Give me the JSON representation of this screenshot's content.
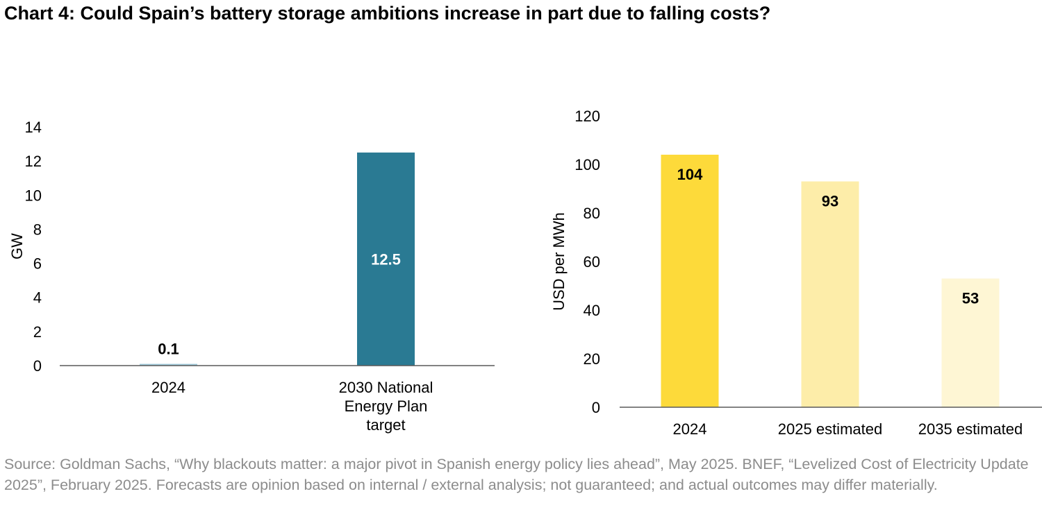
{
  "title": "Chart 4: Could Spain’s battery storage ambitions increase in part due to falling costs?",
  "source": "Source: Goldman Sachs, “Why blackouts matter: a major pivot in Spanish energy policy lies ahead”, May 2025. BNEF, “Levelized Cost of Electricity Update 2025”, February 2025. Forecasts are opinion based on internal / external analysis; not guaranteed; and actual outcomes may differ materially.",
  "chart_data": [
    {
      "type": "bar",
      "categories": [
        [
          "2024"
        ],
        [
          "2030 National",
          "Energy Plan",
          "target"
        ]
      ],
      "values": [
        0.1,
        12.5
      ],
      "data_labels": [
        "0.1",
        "12.5"
      ],
      "ylabel": "GW",
      "ylim": [
        0,
        14
      ],
      "yticks": [
        0,
        2,
        4,
        6,
        8,
        10,
        12,
        14
      ],
      "colors": [
        "#9fc9d9",
        "#2a7a93"
      ],
      "label_colors": [
        "#000000",
        "#ffffff"
      ],
      "grid": false
    },
    {
      "type": "bar",
      "categories": [
        [
          "2024"
        ],
        [
          "2025 estimated"
        ],
        [
          "2035 estimated"
        ]
      ],
      "values": [
        104,
        93,
        53
      ],
      "data_labels": [
        "104",
        "93",
        "53"
      ],
      "ylabel": "USD per MWh",
      "ylim": [
        0,
        120
      ],
      "yticks": [
        0,
        20,
        40,
        60,
        80,
        100,
        120
      ],
      "colors": [
        "#fdda3a",
        "#fdeda9",
        "#fef6d4"
      ],
      "label_colors": [
        "#000000",
        "#000000",
        "#000000"
      ],
      "grid": false
    }
  ]
}
